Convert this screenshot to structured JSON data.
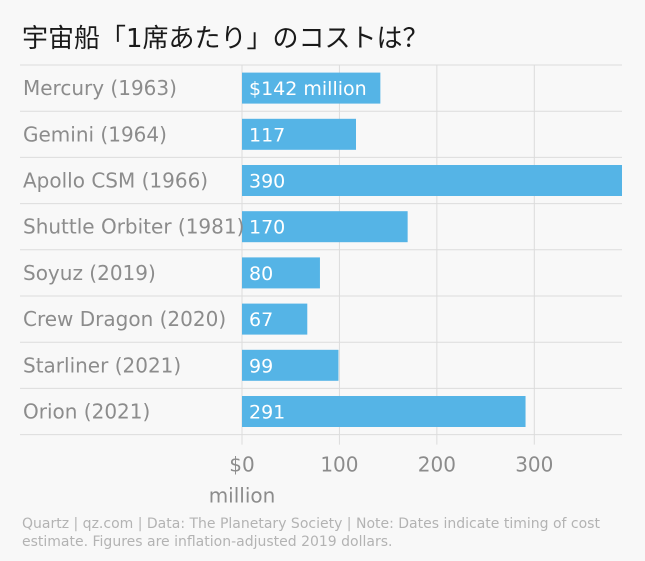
{
  "title": "宇宙船「1席あたり」のコストは？",
  "footer": "Quartz | qz.com | Data: The Planetary Society | Note: Dates indicate timing of cost estimate. Figures are inflation-adjusted 2019 dollars.",
  "colors": {
    "bar": "#55b4e6",
    "grid": "#dcdcdc",
    "label": "#8c8c8c"
  },
  "chart_data": {
    "type": "bar",
    "orientation": "horizontal",
    "title": "宇宙船「1席あたり」のコストは？",
    "categories": [
      "Mercury (1963)",
      "Gemini (1964)",
      "Apollo CSM (1966)",
      "Shuttle Orbiter (1981)",
      "Soyuz (2019)",
      "Crew Dragon (2020)",
      "Starliner (2021)",
      "Orion (2021)"
    ],
    "values": [
      142,
      117,
      390,
      170,
      80,
      67,
      99,
      291
    ],
    "value_labels": [
      "$142 million",
      "117",
      "390",
      "170",
      "80",
      "67",
      "99",
      "291"
    ],
    "xticks": [
      {
        "value": 0,
        "label": [
          "$0",
          "million"
        ]
      },
      {
        "value": 100,
        "label": [
          "100"
        ]
      },
      {
        "value": 200,
        "label": [
          "200"
        ]
      },
      {
        "value": 300,
        "label": [
          "300"
        ]
      }
    ],
    "xlim": [
      0,
      390
    ],
    "grid": true
  }
}
